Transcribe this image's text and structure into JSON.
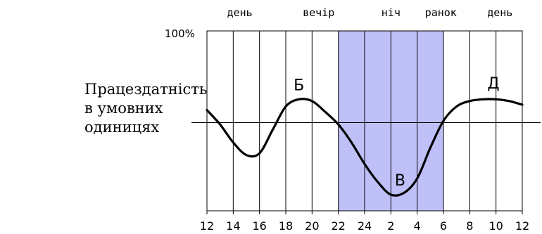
{
  "chart_data": {
    "type": "line",
    "ylabel": "Працездатність\nв умовних\nодиницях",
    "y_max_label": "100%",
    "x_tick_labels": [
      "12",
      "14",
      "16",
      "18",
      "20",
      "22",
      "24",
      "2",
      "4",
      "6",
      "8",
      "10",
      "12"
    ],
    "x_hours": [
      12,
      14,
      16,
      18,
      20,
      22,
      24,
      26,
      28,
      30,
      32,
      34,
      36
    ],
    "xlim": [
      12,
      36
    ],
    "ylim": [
      0,
      100
    ],
    "baseline": 49,
    "grid": "vertical",
    "shaded_region": {
      "from": 22,
      "to": 30,
      "color": "#c0c0f8"
    },
    "period_labels": [
      {
        "text": "день",
        "at": 14.5
      },
      {
        "text": "вечір",
        "at": 20.5
      },
      {
        "text": "ніч",
        "at": 26
      },
      {
        "text": "ранок",
        "at": 29.8
      },
      {
        "text": "день",
        "at": 34.3
      }
    ],
    "series": [
      {
        "x": [
          12,
          13,
          14,
          15,
          16,
          17,
          18,
          19,
          20,
          21,
          22,
          23,
          24,
          25,
          26,
          27,
          28,
          29,
          30,
          31,
          32,
          33,
          34,
          35,
          36
        ],
        "y": [
          56,
          48,
          38,
          31,
          32,
          45,
          58,
          62,
          61,
          55,
          48,
          38,
          26,
          16,
          9,
          10,
          18,
          35,
          50,
          58,
          61,
          62,
          62,
          61,
          59
        ]
      }
    ],
    "annotations": [
      {
        "text": "Б",
        "x": 19.0,
        "y": 67
      },
      {
        "text": "В",
        "x": 26.7,
        "y": 14
      },
      {
        "text": "Д",
        "x": 33.8,
        "y": 68
      }
    ]
  }
}
